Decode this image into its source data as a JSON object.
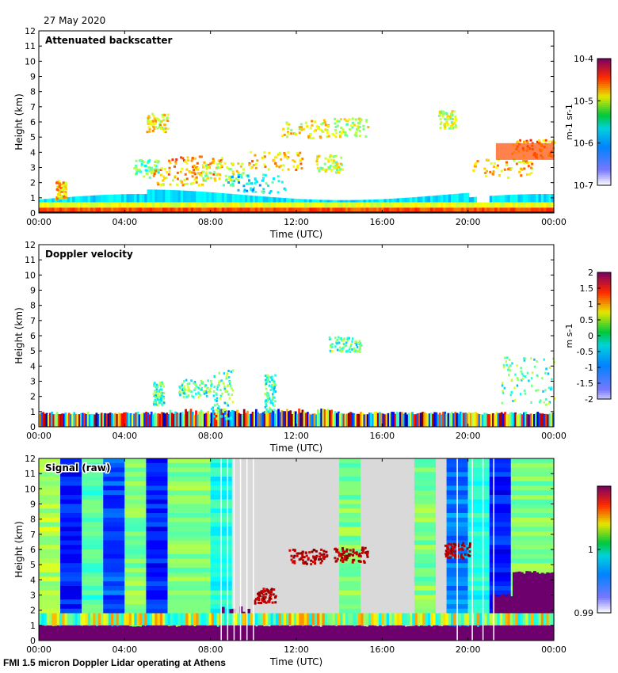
{
  "date_label": "27 May 2020",
  "footer": "FMI 1.5 micron Doppler Lidar operating at Athens",
  "chart_data": [
    {
      "type": "heatmap",
      "title": "Attenuated backscatter",
      "xlabel": "Time (UTC)",
      "ylabel": "Height (km)",
      "x_ticks": [
        "00:00",
        "04:00",
        "08:00",
        "12:00",
        "16:00",
        "20:00",
        "00:00"
      ],
      "y_ticks": [
        "0",
        "1",
        "2",
        "3",
        "4",
        "5",
        "6",
        "7",
        "8",
        "9",
        "10",
        "11",
        "12"
      ],
      "ylim": [
        0,
        12
      ],
      "colorbar": {
        "scale": "log",
        "range": [
          1e-07,
          0.0001
        ],
        "ticks": [
          "10-4",
          "10-5",
          "10-6",
          "10-7"
        ],
        "units": "m-1 sr-1"
      },
      "colormap": "jet"
    },
    {
      "type": "heatmap",
      "title": "Doppler velocity",
      "xlabel": "Time (UTC)",
      "ylabel": "Height (km)",
      "x_ticks": [
        "00:00",
        "04:00",
        "08:00",
        "12:00",
        "16:00",
        "20:00",
        "00:00"
      ],
      "y_ticks": [
        "0",
        "1",
        "2",
        "3",
        "4",
        "5",
        "6",
        "7",
        "8",
        "9",
        "10",
        "11",
        "12"
      ],
      "ylim": [
        0,
        12
      ],
      "colorbar": {
        "scale": "linear",
        "range": [
          -2,
          2
        ],
        "ticks": [
          "2",
          "1.5",
          "1",
          "0.5",
          "0",
          "-0.5",
          "-1",
          "-1.5",
          "-2"
        ],
        "units": "m s-1"
      },
      "colormap": "jet"
    },
    {
      "type": "heatmap",
      "title": "Signal (raw)",
      "xlabel": "Time (UTC)",
      "ylabel": "Height (km)",
      "x_ticks": [
        "00:00",
        "04:00",
        "08:00",
        "12:00",
        "16:00",
        "20:00",
        "00:00"
      ],
      "y_ticks": [
        "0",
        "1",
        "2",
        "3",
        "4",
        "5",
        "6",
        "7",
        "8",
        "9",
        "10",
        "11",
        "12"
      ],
      "ylim": [
        0,
        12
      ],
      "colorbar": {
        "scale": "linear",
        "range": [
          0.99,
          1.01
        ],
        "ticks": [
          "1",
          "0.99"
        ],
        "units": ""
      },
      "colormap": "jet"
    }
  ]
}
